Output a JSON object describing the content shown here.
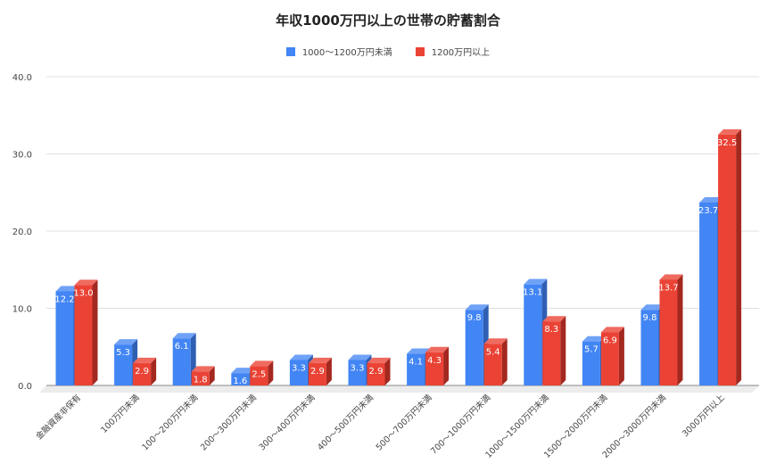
{
  "chart_data": {
    "type": "bar",
    "title": "年収1000万円以上の世帯の貯蓄割合",
    "xlabel": "",
    "ylabel": "",
    "ylim": [
      0,
      40
    ],
    "yticks": [
      "0.0",
      "10.0",
      "20.0",
      "30.0",
      "40.0"
    ],
    "grid": true,
    "legend_position": "top",
    "style": "3d",
    "categories": [
      "金融資産非保有",
      "100万円未満",
      "100〜200万円未満",
      "200〜300万円未満",
      "300〜400万円未満",
      "400〜500万円未満",
      "500〜700万円未満",
      "700〜1000万円未満",
      "1000〜1500万円未満",
      "1500〜2000万円未満",
      "2000〜3000万円未満",
      "3000万円以上"
    ],
    "series": [
      {
        "name": "1000〜1200万円未満",
        "color": "#4285F4",
        "side_color": "#2F5FB3",
        "top_color": "#6FA2F7",
        "values": [
          12.2,
          5.3,
          6.1,
          1.6,
          3.3,
          3.3,
          4.1,
          9.8,
          13.1,
          5.7,
          9.8,
          23.7
        ]
      },
      {
        "name": "1200万円以上",
        "color": "#EA4335",
        "side_color": "#A3281F",
        "top_color": "#EF6A5F",
        "values": [
          13.0,
          2.9,
          1.8,
          2.5,
          2.9,
          2.9,
          4.3,
          5.4,
          8.3,
          6.9,
          13.7,
          32.5
        ]
      }
    ]
  },
  "chart": {
    "title": "年収1000万円以上の世帯の貯蓄割合",
    "legend": [
      {
        "label": "1000〜1200万円未満",
        "color": "#4285F4"
      },
      {
        "label": "1200万円以上",
        "color": "#EA4335"
      }
    ]
  }
}
